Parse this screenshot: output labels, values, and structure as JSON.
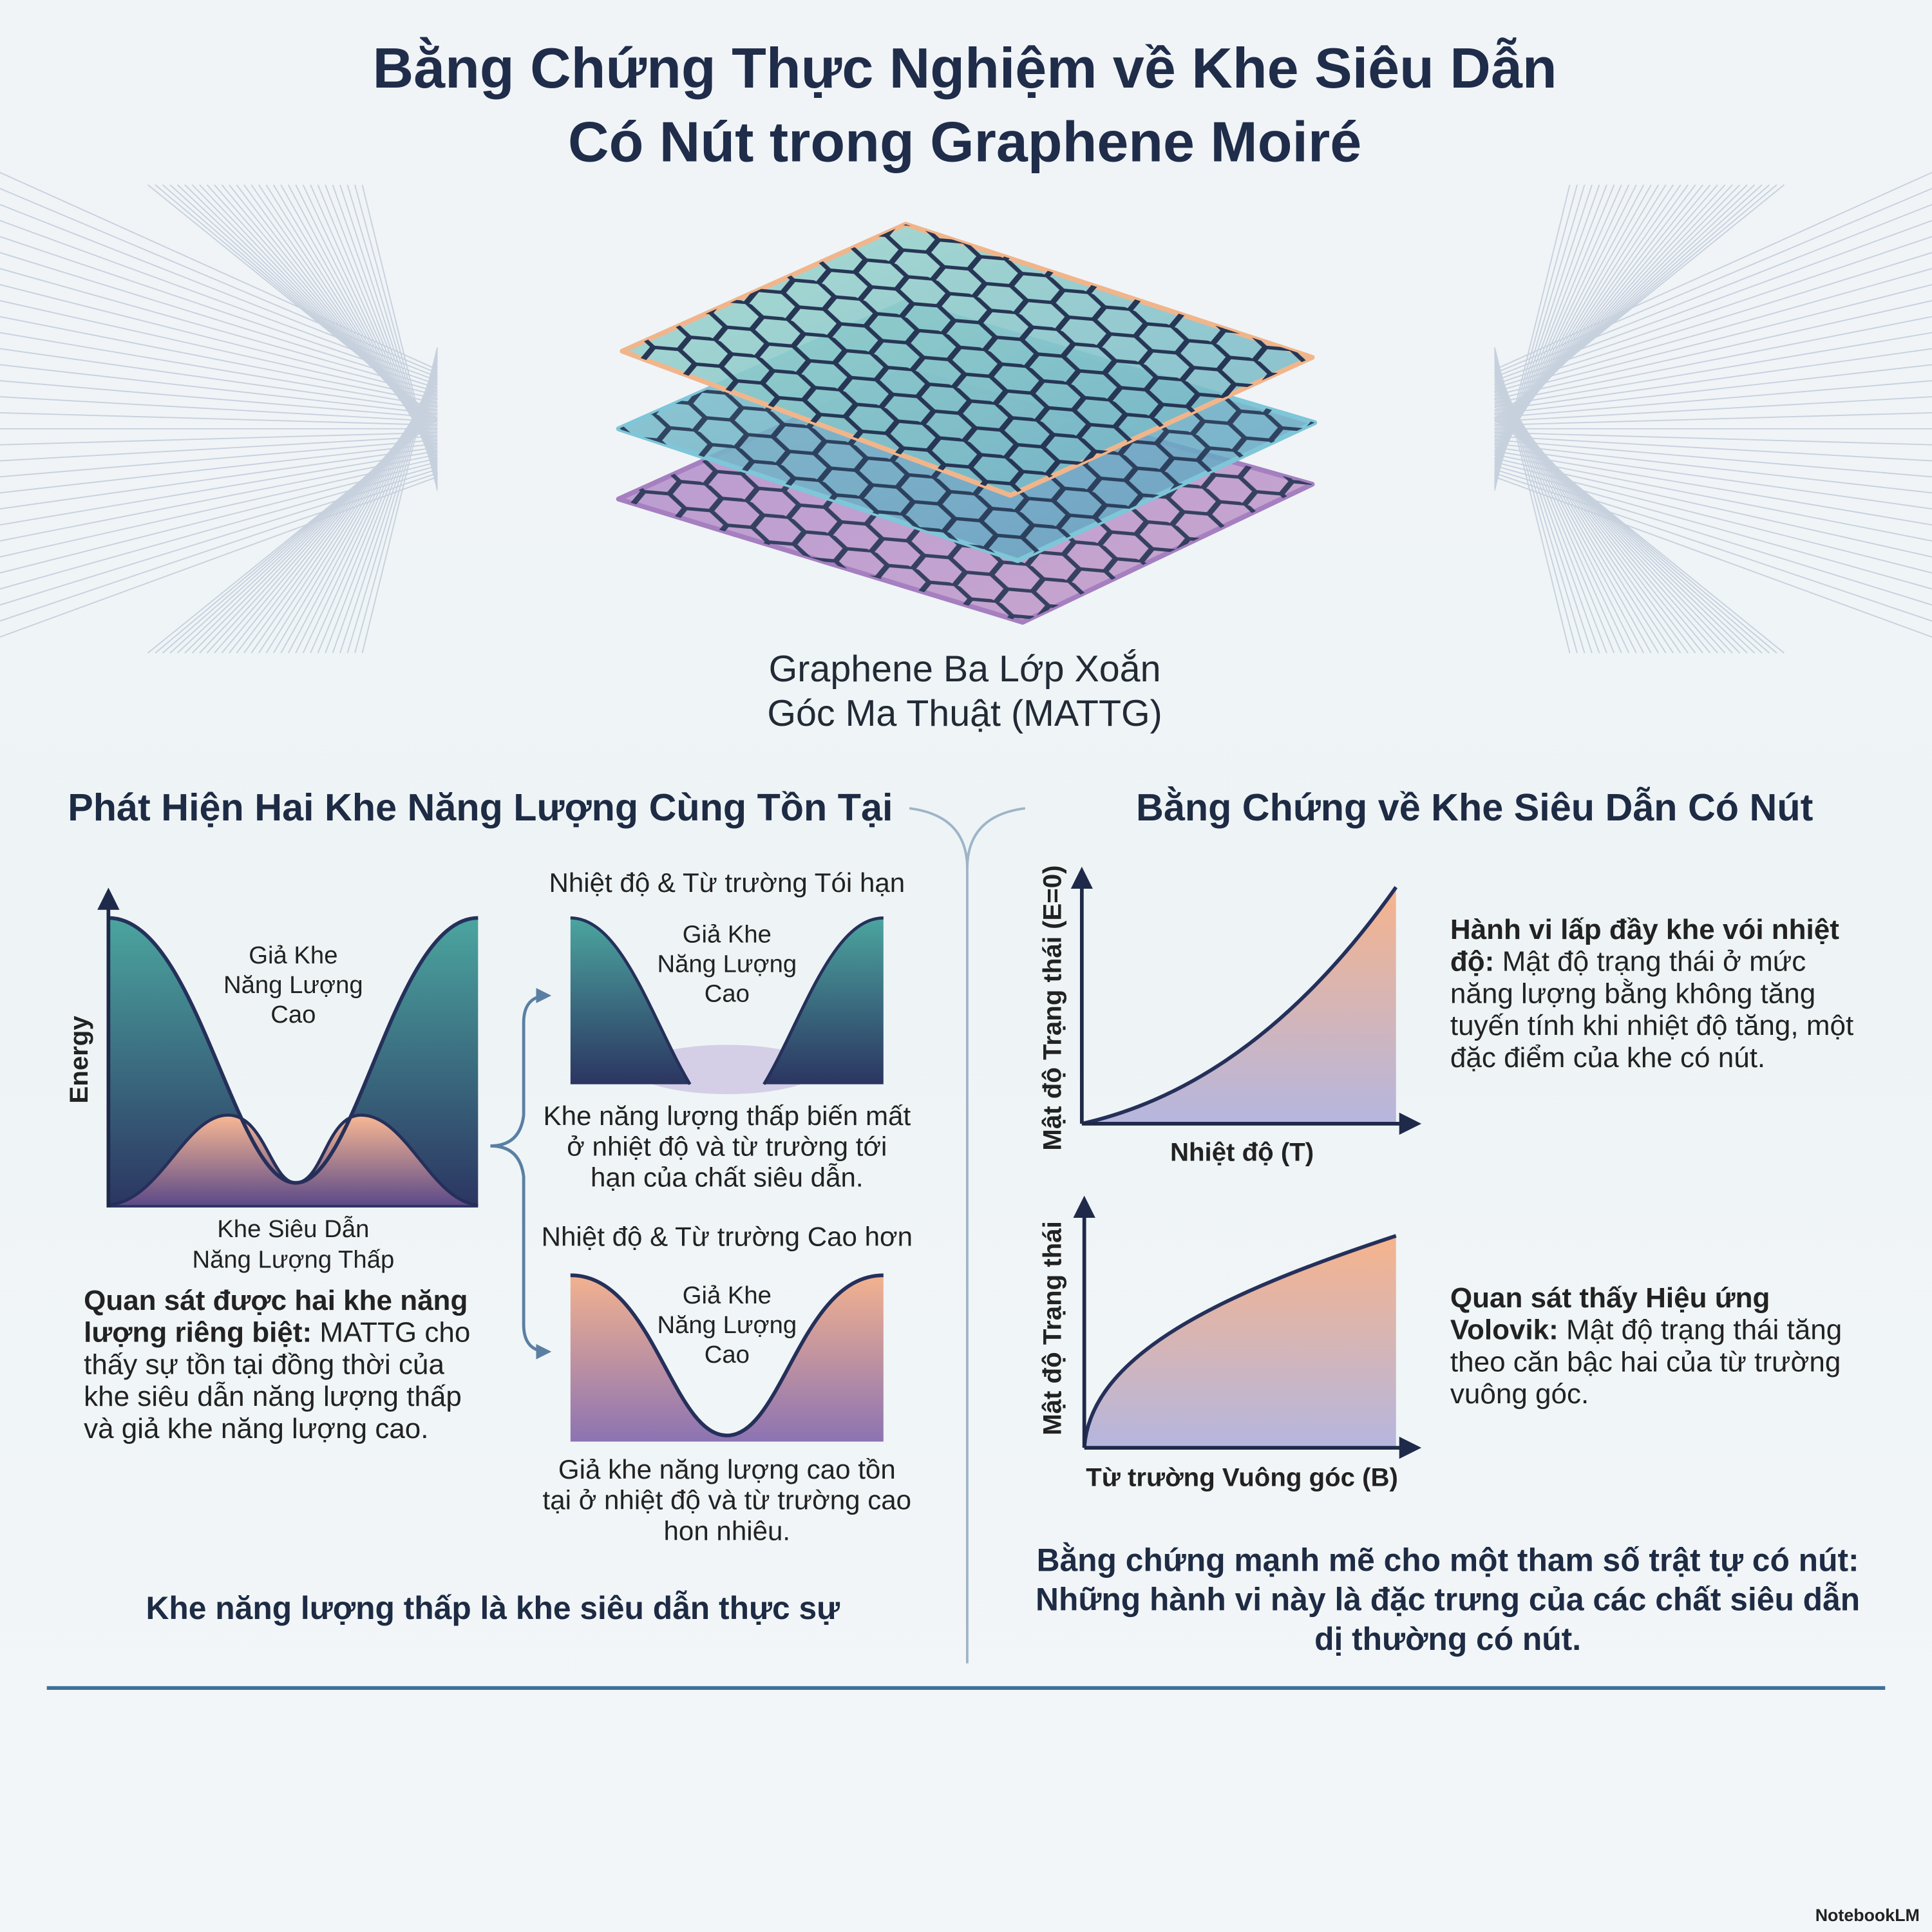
{
  "header": {
    "title": [
      "Bằng Chứng Thực Nghiệm về Khe Siêu Dẫn",
      "Có Nút trong Graphene Moiré"
    ]
  },
  "hero": {
    "label": [
      "Graphene Ba Lớp Xoắn",
      "Góc Ma Thuật (MATTG)"
    ]
  },
  "left_section": {
    "heading": "Phát Hiện Hai Khe Năng Lượng Cùng Tồn Tại",
    "diagram": {
      "y_axis_label": "Energy",
      "pseudogap_label": [
        "Giả Khe",
        "Năng Lượng",
        "Cao"
      ],
      "sc_gap_label": [
        "Khe Siêu Dẫn",
        "Năng Lượng Thấp"
      ]
    },
    "description": {
      "lead": "Quan sát được hai khe năng lượng riêng biệt:",
      "text": "MATTG cho thấy sự tồn tại đồng thời của khe siêu dẫn năng lượng thấp và giả khe năng lượng cao."
    },
    "panels": [
      {
        "title": "Nhiệt độ & Từ trường Tói hạn",
        "inner_label": [
          "Giả Khe",
          "Năng Lượng",
          "Cao"
        ],
        "caption": "Khe năng lượng thấp biến mất ở nhiệt độ và từ trường tới hạn của chất siêu dẫn."
      },
      {
        "title": "Nhiệt độ & Từ trường Cao hơn",
        "inner_label": [
          "Giả Khe",
          "Năng Lượng",
          "Cao"
        ],
        "caption": "Giả khe năng lượng cao tồn tại ở nhiệt độ và từ trường cao hon nhiêu."
      }
    ],
    "conclusion": "Khe năng lượng thấp là khe siêu dẫn thực sự"
  },
  "right_section": {
    "heading": "Bằng Chứng về Khe Siêu Dẫn Có Nút",
    "plots": [
      {
        "y_axis_label": "Mật độ Trạng thái (E=0)",
        "x_axis_label": "Nhiệt độ (T)",
        "description": {
          "lead": "Hành vi lấp đầy khe vói nhiệt độ:",
          "text": "Mật độ trạng thái ở mức năng lượng bằng không tăng tuyến tính khi nhiệt độ tăng, một đặc điểm của khe có nút."
        }
      },
      {
        "y_axis_label": "Mật độ Trạng thái",
        "x_axis_label": "Từ trường Vuông góc (B)",
        "description": {
          "lead": "Quan sát thấy Hiệu ứng Volovik:",
          "text": "Mật độ trạng thái tăng theo căn bậc hai của từ trường vuông góc."
        }
      }
    ],
    "conclusion": "Bằng chứng mạnh mẽ cho một tham số trật tự có nút: Những hành vi này là đặc trưng của các chất siêu dẫn dị thường có nút."
  },
  "footer": {
    "brand": "NotebookLM"
  }
}
